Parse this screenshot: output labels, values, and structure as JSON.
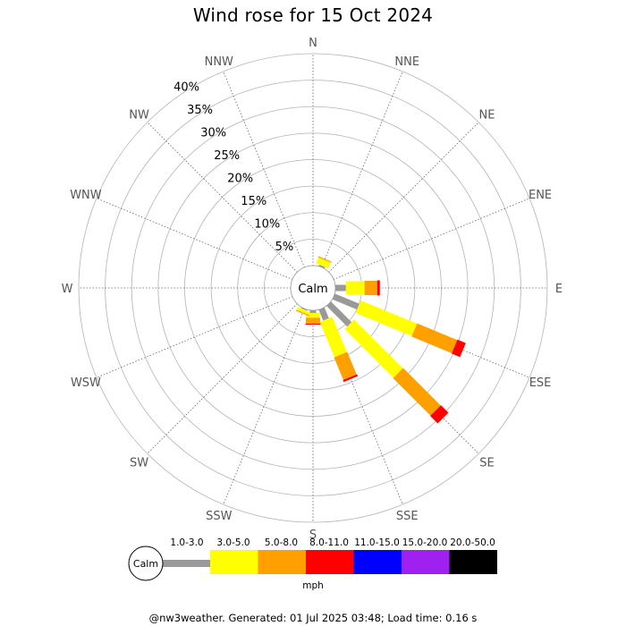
{
  "chart_data": {
    "type": "wind-rose",
    "title": "Wind rose for 15 Oct 2024",
    "directions": [
      "N",
      "NNE",
      "NE",
      "ENE",
      "E",
      "ESE",
      "SE",
      "SSE",
      "S",
      "SSW",
      "SW",
      "WSW",
      "W",
      "WNW",
      "NW",
      "NNW"
    ],
    "radial_ticks": [
      "5%",
      "10%",
      "15%",
      "20%",
      "25%",
      "30%",
      "35%",
      "40%"
    ],
    "radial_max": 40,
    "center_label": "Calm",
    "calm_percent": 3,
    "speed_unit": "mph",
    "speed_bins": [
      {
        "label": "1.0-3.0",
        "color": "#999999"
      },
      {
        "label": "3.0-5.0",
        "color": "#ffff00"
      },
      {
        "label": "5.0-8.0",
        "color": "#ff9f00"
      },
      {
        "label": "8.0-11.0",
        "color": "#ff0000"
      },
      {
        "label": "11.0-15.0",
        "color": "#0000ff"
      },
      {
        "label": "15.0-20.0",
        "color": "#a020f0"
      },
      {
        "label": "20.0-50.0",
        "color": "#000000"
      }
    ],
    "series": [
      {
        "direction": "NNE",
        "values": [
          0.3,
          1.2,
          0.2,
          0,
          0,
          0,
          0
        ]
      },
      {
        "direction": "E",
        "values": [
          2.0,
          3.5,
          2.4,
          0.5,
          0,
          0,
          0
        ]
      },
      {
        "direction": "ESE",
        "values": [
          5.0,
          11.5,
          8.2,
          1.7,
          0,
          0,
          0
        ]
      },
      {
        "direction": "SE",
        "values": [
          5.5,
          13.0,
          10.0,
          2.0,
          0,
          0,
          0
        ]
      },
      {
        "direction": "SSE",
        "values": [
          2.2,
          7.2,
          4.6,
          0.4,
          0,
          0,
          0
        ]
      },
      {
        "direction": "S",
        "values": [
          0.5,
          0.9,
          1.1,
          0.2,
          0,
          0,
          0
        ]
      },
      {
        "direction": "SSW",
        "values": [
          0.2,
          0.6,
          0.2,
          0,
          0,
          0,
          0
        ]
      }
    ]
  },
  "footer": "@nw3weather. Generated: 01 Jul 2025 03:48; Load time: 0.16 s"
}
